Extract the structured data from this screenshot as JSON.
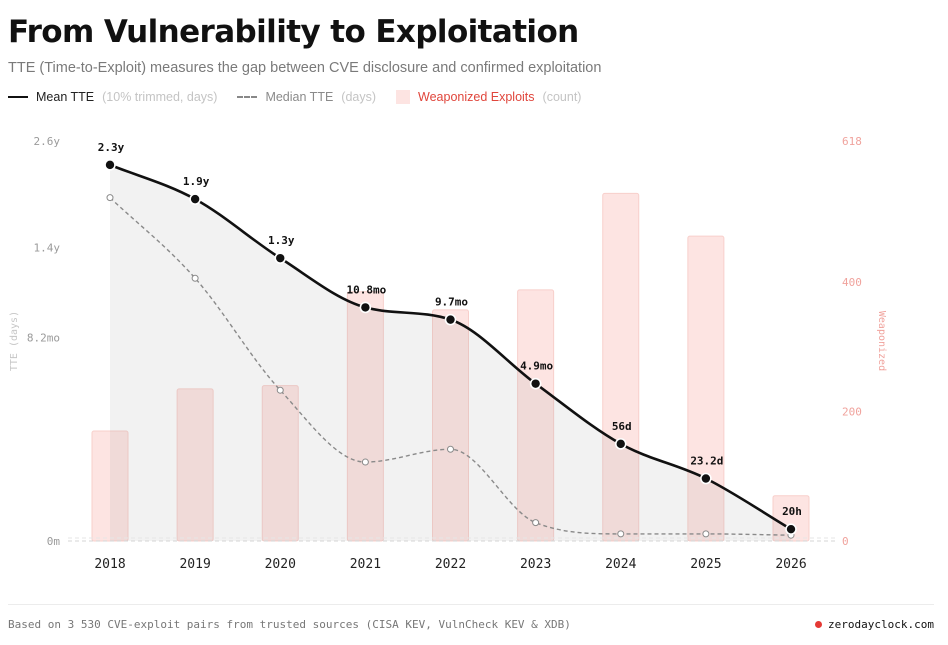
{
  "title": "From Vulnerability to Exploitation",
  "subtitle": "TTE (Time-to-Exploit) measures the gap between CVE disclosure and confirmed exploitation",
  "legend": {
    "mean": {
      "label": "Mean TTE",
      "note": "(10% trimmed, days)"
    },
    "median": {
      "label": "Median TTE",
      "note": "(days)"
    },
    "weaponized": {
      "label": "Weaponized Exploits",
      "note": "(count)"
    }
  },
  "colors": {
    "mean_line": "#111111",
    "median_line": "#8a8a8a",
    "bars_fill": "#fde4e2",
    "bars_stroke": "#f8cfcb",
    "right_axis_text": "#f0a39d",
    "brand_dot": "#e53935"
  },
  "chart_data": {
    "type": "bar+line",
    "categories": [
      "2018",
      "2019",
      "2020",
      "2021",
      "2022",
      "2023",
      "2024",
      "2025",
      "2026"
    ],
    "y_left": {
      "label": "TTE (days)",
      "scale": "sqrt",
      "ticks": [
        {
          "value": 0,
          "label": "0m"
        },
        {
          "value": 246,
          "label": "8.2mo"
        },
        {
          "value": 511,
          "label": "1.4y"
        },
        {
          "value": 950,
          "label": "2.6y"
        }
      ],
      "range": [
        0,
        950
      ]
    },
    "y_right": {
      "label": "Weaponized",
      "ticks": [
        0,
        200,
        400,
        618
      ],
      "range": [
        0,
        618
      ]
    },
    "series": [
      {
        "name": "Mean TTE",
        "kind": "line",
        "style": "solid",
        "values": [
          840,
          694,
          475,
          324,
          291,
          147,
          56,
          23.2,
          0.83
        ],
        "labels": [
          "2.3y",
          "1.9y",
          "1.3y",
          "10.8mo",
          "9.7mo",
          "4.9mo",
          "56d",
          "23.2d",
          "20h"
        ]
      },
      {
        "name": "Median TTE",
        "kind": "line",
        "style": "dashed",
        "values": [
          700,
          410,
          135,
          37,
          50,
          2,
          0.3,
          0.3,
          0.2
        ]
      },
      {
        "name": "Weaponized Exploits",
        "kind": "bar",
        "axis": "right",
        "values": [
          170,
          235,
          240,
          385,
          357,
          388,
          537,
          471,
          70
        ]
      }
    ]
  },
  "footer": {
    "source": "Based on 3 530 CVE-exploit pairs from trusted sources (CISA KEV, VulnCheck KEV & XDB)",
    "brand": "zerodayclock.com"
  }
}
